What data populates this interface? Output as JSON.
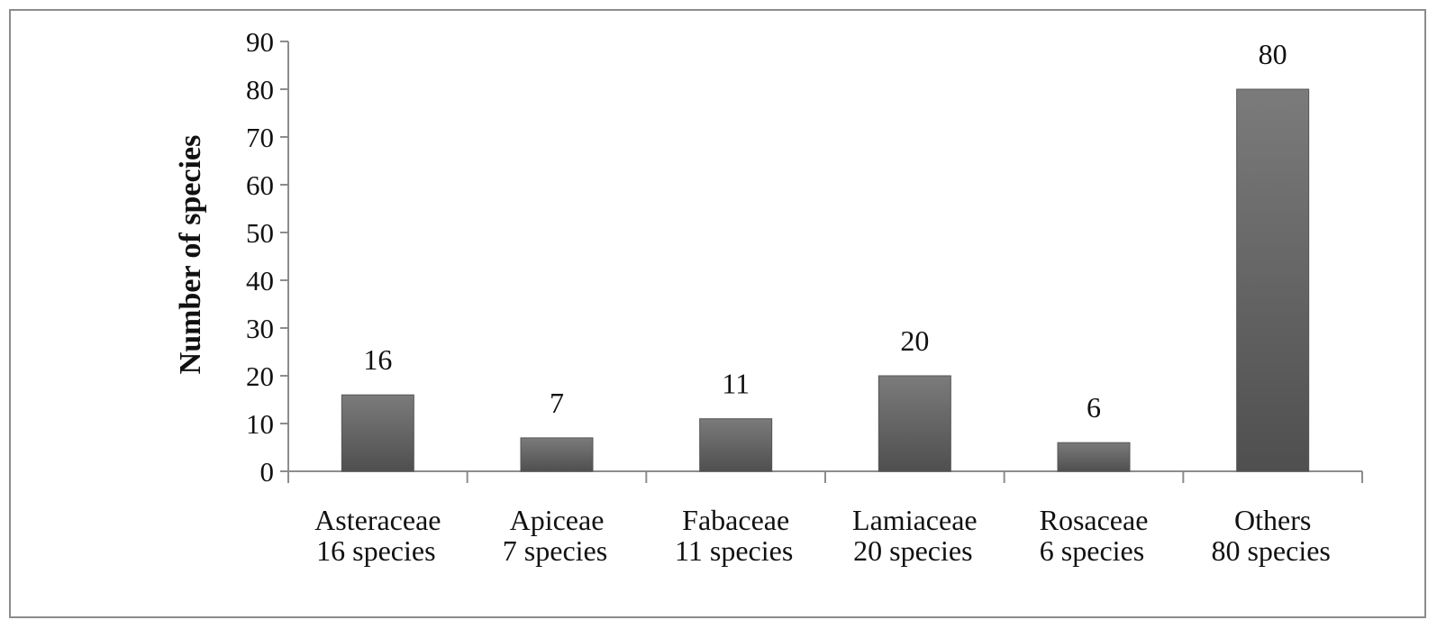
{
  "chart_data": {
    "type": "bar",
    "title": "",
    "xlabel": "",
    "ylabel": "Number of species",
    "ylim": [
      0,
      90
    ],
    "yticks": [
      0,
      10,
      20,
      30,
      40,
      50,
      60,
      70,
      80,
      90
    ],
    "categories": [
      {
        "name": "Asteraceae",
        "sub": "16 species"
      },
      {
        "name": "Apiceae",
        "sub": "7 species"
      },
      {
        "name": "Fabaceae",
        "sub": "11 species"
      },
      {
        "name": "Lamiaceae",
        "sub": "20 species"
      },
      {
        "name": "Rosaceae",
        "sub": "6 species"
      },
      {
        "name": "Others",
        "sub": "80 species"
      }
    ],
    "values": [
      16,
      7,
      11,
      20,
      6,
      80
    ],
    "data_labels": [
      "16",
      "7",
      "11",
      "20",
      "6",
      "80"
    ],
    "bar_color": "#5f5f5f",
    "axis_color": "#8c8c8c",
    "grid": false,
    "legend": "none"
  }
}
